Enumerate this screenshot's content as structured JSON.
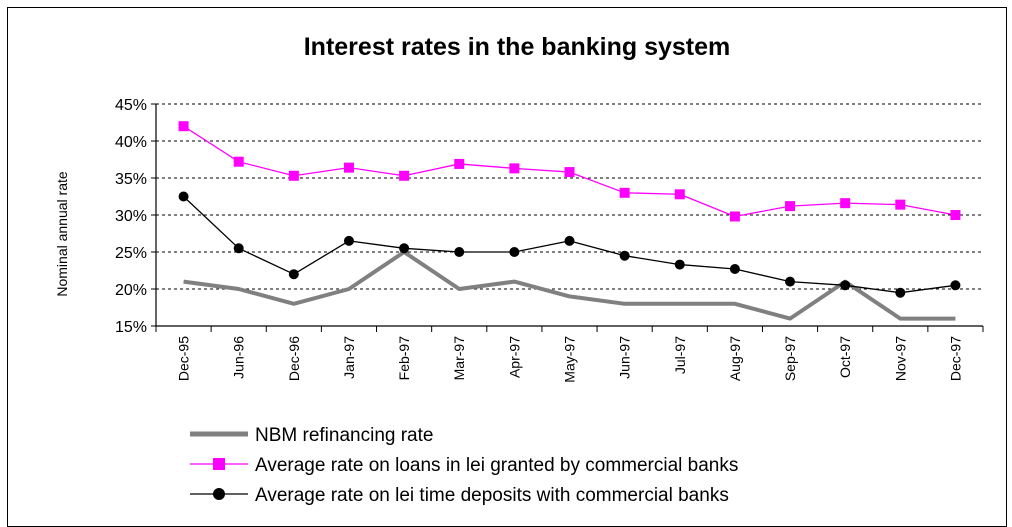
{
  "chart_data": {
    "type": "line",
    "title": "Interest rates in the banking system",
    "ylabel": "Nominal annual rate",
    "xlabel": "",
    "ylim": [
      15,
      45
    ],
    "yticks": [
      "15%",
      "20%",
      "25%",
      "30%",
      "35%",
      "40%",
      "45%"
    ],
    "grid": "horizontal-dashed",
    "legend_position": "bottom-left",
    "categories": [
      "Dec-95",
      "Jun-96",
      "Dec-96",
      "Jan-97",
      "Feb-97",
      "Mar-97",
      "Apr-97",
      "May-97",
      "Jun-97",
      "Jul-97",
      "Aug-97",
      "Sep-97",
      "Oct-97",
      "Nov-97",
      "Dec-97"
    ],
    "series": [
      {
        "name": "NBM refinancing rate",
        "color": "#808080",
        "marker": "none",
        "values": [
          21,
          20,
          18,
          20,
          25,
          20,
          21,
          19,
          18,
          18,
          18,
          16,
          21,
          16,
          16
        ]
      },
      {
        "name": "Average rate on loans in lei granted by commercial banks",
        "color": "#ff00ff",
        "marker": "square",
        "values": [
          42,
          37.2,
          35.3,
          36.4,
          35.3,
          36.9,
          36.3,
          35.8,
          33,
          32.8,
          29.8,
          31.2,
          31.6,
          31.4,
          30
        ]
      },
      {
        "name": "Average rate on lei time deposits with commercial banks",
        "color": "#000000",
        "marker": "circle",
        "values": [
          32.5,
          25.5,
          22,
          26.5,
          25.5,
          25,
          25,
          26.5,
          24.5,
          23.3,
          22.7,
          21,
          20.5,
          19.5,
          20.5
        ]
      }
    ]
  }
}
